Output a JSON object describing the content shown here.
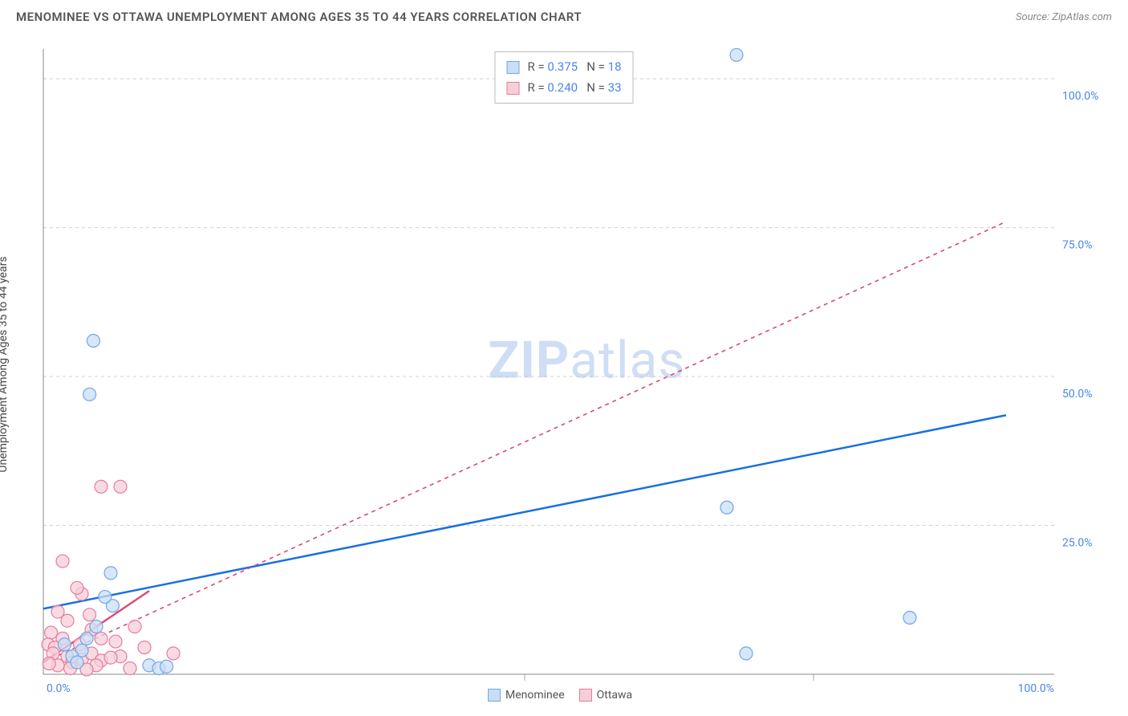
{
  "title": "MENOMINEE VS OTTAWA UNEMPLOYMENT AMONG AGES 35 TO 44 YEARS CORRELATION CHART",
  "source": "Source: ZipAtlas.com",
  "y_axis_label": "Unemployment Among Ages 35 to 44 years",
  "watermark_bold": "ZIP",
  "watermark_rest": "atlas",
  "chart": {
    "type": "scatter",
    "xlim": [
      0,
      105
    ],
    "ylim": [
      0,
      105
    ],
    "x_origin_label": "0.0%",
    "x_end_label": "100.0%",
    "y_ticks": [
      25,
      50,
      75,
      100
    ],
    "y_tick_labels": [
      "25.0%",
      "50.0%",
      "75.0%",
      "100.0%"
    ],
    "background_color": "#ffffff",
    "grid_color": "#d0d0d0",
    "axis_color": "#888888",
    "tick_label_color": "#4a86e8",
    "marker_radius": 8,
    "marker_stroke_width": 1.2,
    "series": [
      {
        "name": "Menominee",
        "fill_color": "#c9def5",
        "stroke_color": "#6fa8e8",
        "trend_color": "#1a6fe0",
        "trend_dash": "none",
        "trend_width": 2.5,
        "points": [
          [
            72.0,
            104.0
          ],
          [
            5.2,
            56.0
          ],
          [
            4.8,
            47.0
          ],
          [
            71.0,
            28.0
          ],
          [
            90.0,
            9.5
          ],
          [
            73.0,
            3.5
          ],
          [
            7.0,
            17.0
          ],
          [
            7.2,
            11.5
          ],
          [
            6.4,
            13.0
          ],
          [
            4.5,
            6.0
          ],
          [
            4.0,
            4.0
          ],
          [
            3.0,
            3.0
          ],
          [
            2.2,
            5.0
          ],
          [
            11.0,
            1.5
          ],
          [
            12.0,
            1.0
          ],
          [
            12.8,
            1.3
          ],
          [
            3.5,
            2.0
          ],
          [
            5.5,
            8.0
          ]
        ],
        "trend_line": [
          [
            0,
            11.0
          ],
          [
            100,
            43.5
          ]
        ]
      },
      {
        "name": "Ottawa",
        "fill_color": "#f5cfd8",
        "stroke_color": "#e87b9b",
        "trend_color": "#d94a74",
        "trend_dash": "5 5",
        "trend_width": 1.6,
        "points": [
          [
            6.0,
            31.5
          ],
          [
            8.0,
            31.5
          ],
          [
            2.0,
            19.0
          ],
          [
            4.0,
            13.5
          ],
          [
            3.5,
            14.5
          ],
          [
            4.8,
            10.0
          ],
          [
            2.5,
            9.0
          ],
          [
            1.5,
            10.5
          ],
          [
            5.0,
            7.5
          ],
          [
            6.0,
            6.0
          ],
          [
            7.5,
            5.5
          ],
          [
            9.5,
            8.0
          ],
          [
            10.5,
            4.5
          ],
          [
            8.0,
            3.0
          ],
          [
            2.0,
            6.0
          ],
          [
            0.8,
            7.0
          ],
          [
            0.5,
            5.0
          ],
          [
            1.2,
            4.5
          ],
          [
            1.0,
            3.5
          ],
          [
            2.5,
            3.0
          ],
          [
            3.0,
            2.0
          ],
          [
            4.0,
            2.5
          ],
          [
            5.0,
            3.5
          ],
          [
            6.0,
            2.3
          ],
          [
            7.0,
            2.8
          ],
          [
            2.8,
            1.0
          ],
          [
            1.5,
            1.5
          ],
          [
            0.6,
            1.8
          ],
          [
            3.8,
            5.0
          ],
          [
            5.5,
            1.5
          ],
          [
            4.5,
            0.8
          ],
          [
            13.5,
            3.5
          ],
          [
            9.0,
            1.0
          ]
        ],
        "trend_line": [
          [
            0,
            2.0
          ],
          [
            11,
            14.0
          ],
          [
            100,
            76.0
          ]
        ]
      }
    ]
  },
  "stats": [
    {
      "swatch_fill": "#c9def5",
      "swatch_stroke": "#6fa8e8",
      "r_label": "R =",
      "r_value": "0.375",
      "n_label": "N =",
      "n_value": "18"
    },
    {
      "swatch_fill": "#f5cfd8",
      "swatch_stroke": "#e87b9b",
      "r_label": "R =",
      "r_value": "0.240",
      "n_label": "N =",
      "n_value": "33"
    }
  ],
  "legend": [
    {
      "swatch_fill": "#c9def5",
      "swatch_stroke": "#6fa8e8",
      "label": "Menominee"
    },
    {
      "swatch_fill": "#f5cfd8",
      "swatch_stroke": "#e87b9b",
      "label": "Ottawa"
    }
  ]
}
